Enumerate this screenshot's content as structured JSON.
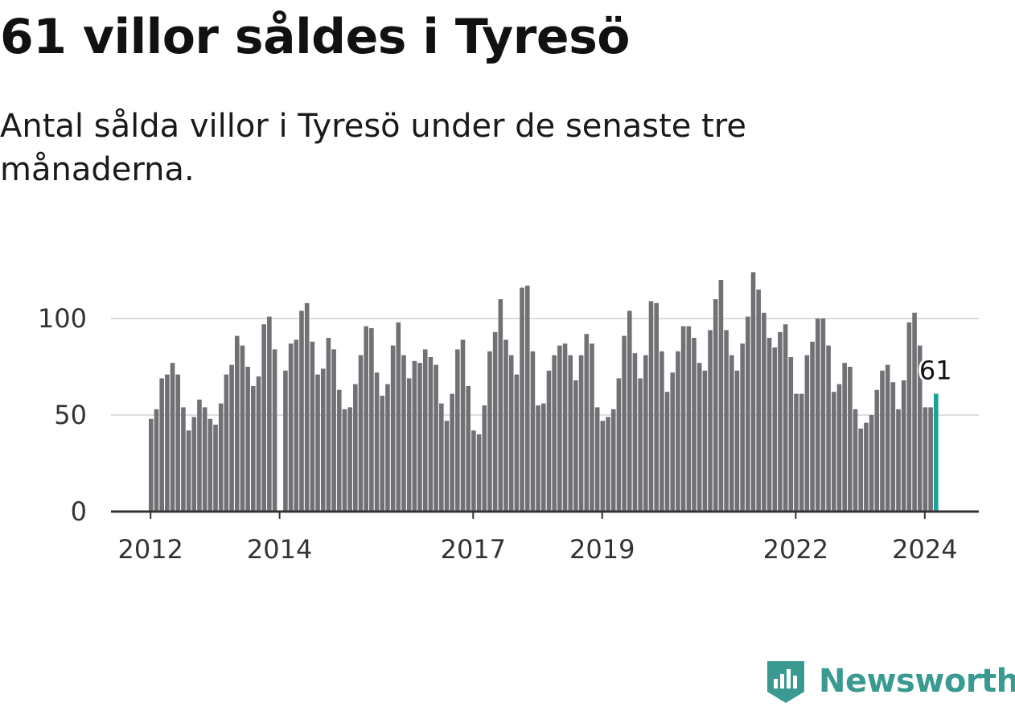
{
  "title": "61 villor såldes i Tyresö",
  "subtitle": "Antal sålda villor i Tyresö under de senaste tre månaderna.",
  "brand": {
    "name": "Newsworthy",
    "icon": "newsworthy-logo-icon",
    "color": "#3a9a92"
  },
  "chart_data": {
    "type": "bar",
    "x_start": "2012-01",
    "x_step": "1 month",
    "x_ticks": [
      "2012",
      "2014",
      "2017",
      "2019",
      "2022",
      "2024"
    ],
    "y_ticks": [
      "0",
      "50",
      "100"
    ],
    "ylim": [
      0,
      125
    ],
    "grid": true,
    "bar_color": "#707075",
    "highlight_color": "#17a39a",
    "highlight_label": "61",
    "values": [
      48,
      53,
      69,
      71,
      77,
      71,
      54,
      42,
      49,
      58,
      54,
      48,
      45,
      56,
      71,
      76,
      91,
      86,
      75,
      65,
      70,
      97,
      101,
      84,
      0,
      73,
      87,
      89,
      104,
      108,
      88,
      71,
      74,
      90,
      84,
      63,
      53,
      54,
      66,
      81,
      96,
      95,
      72,
      60,
      66,
      86,
      98,
      81,
      69,
      78,
      77,
      84,
      80,
      76,
      56,
      47,
      61,
      84,
      89,
      65,
      42,
      40,
      55,
      83,
      93,
      110,
      89,
      81,
      71,
      116,
      117,
      83,
      55,
      56,
      73,
      81,
      86,
      87,
      81,
      68,
      81,
      92,
      87,
      54,
      47,
      49,
      53,
      69,
      91,
      104,
      82,
      69,
      81,
      109,
      108,
      83,
      62,
      72,
      83,
      96,
      96,
      90,
      77,
      73,
      94,
      110,
      120,
      94,
      81,
      73,
      87,
      101,
      124,
      115,
      103,
      90,
      85,
      93,
      97,
      80,
      61,
      61,
      81,
      88,
      100,
      100,
      86,
      62,
      66,
      77,
      75,
      53,
      43,
      46,
      50,
      63,
      73,
      76,
      67,
      53,
      68,
      98,
      103,
      86,
      54,
      54,
      61
    ]
  }
}
